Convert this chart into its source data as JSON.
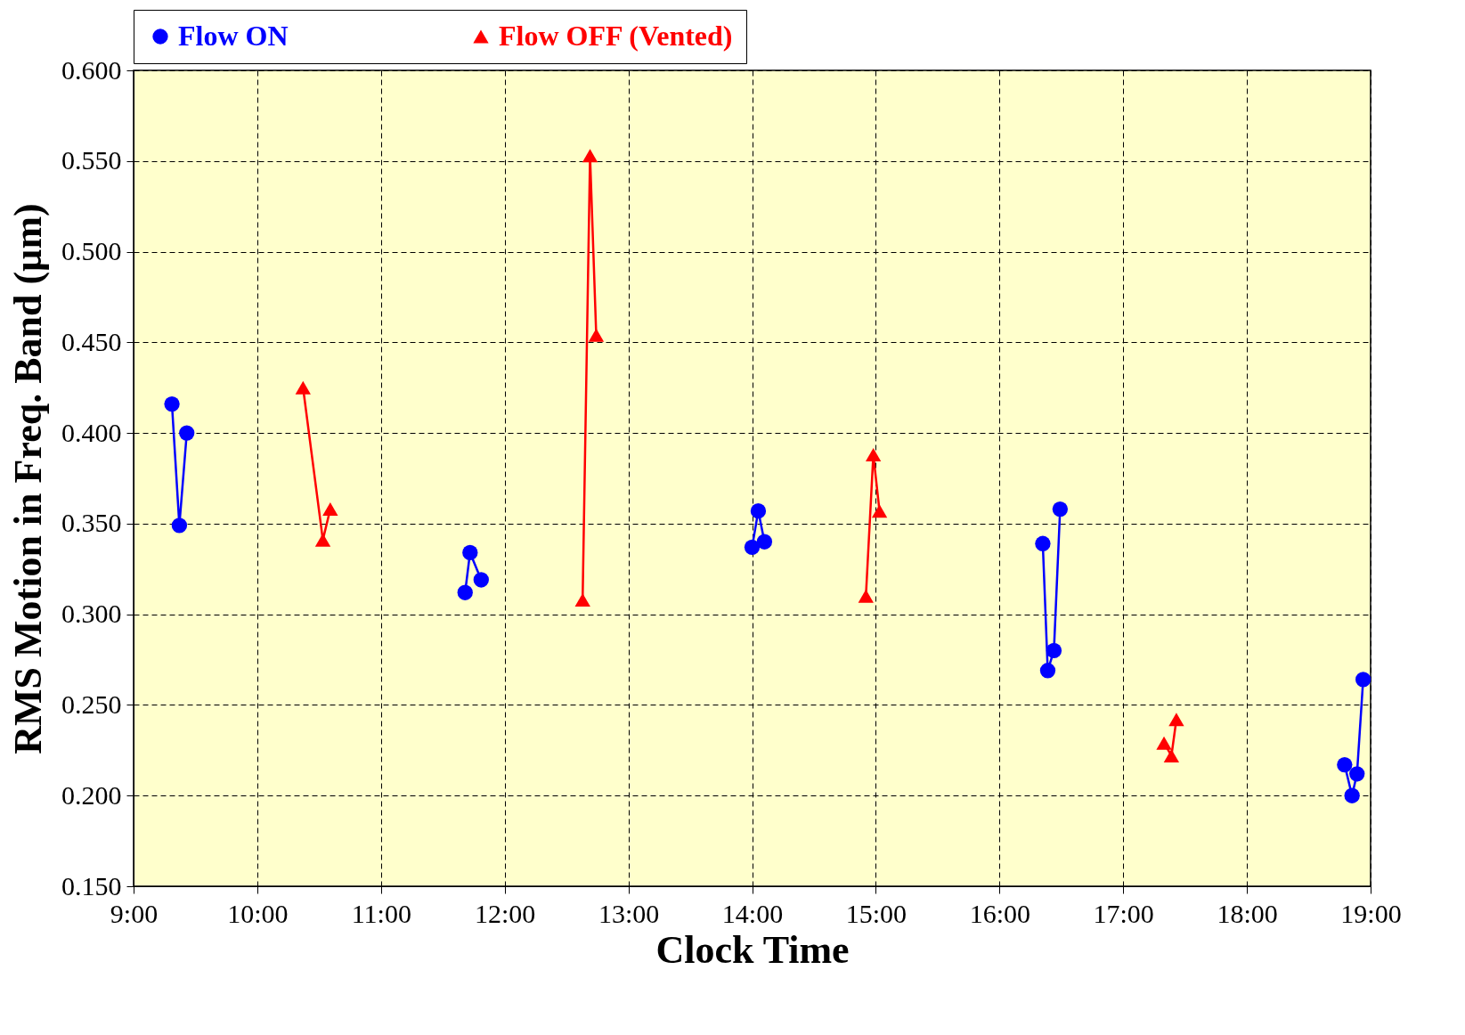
{
  "chart_data": {
    "type": "line",
    "xlabel": "Clock Time",
    "ylabel": "RMS Motion in Freq. Band (µm)",
    "xlim": [
      9,
      19
    ],
    "ylim": [
      0.15,
      0.6
    ],
    "xticks": [
      {
        "value": 9,
        "label": "9:00"
      },
      {
        "value": 10,
        "label": "10:00"
      },
      {
        "value": 11,
        "label": "11:00"
      },
      {
        "value": 12,
        "label": "12:00"
      },
      {
        "value": 13,
        "label": "13:00"
      },
      {
        "value": 14,
        "label": "14:00"
      },
      {
        "value": 15,
        "label": "15:00"
      },
      {
        "value": 16,
        "label": "16:00"
      },
      {
        "value": 17,
        "label": "17:00"
      },
      {
        "value": 18,
        "label": "18:00"
      },
      {
        "value": 19,
        "label": "19:00"
      }
    ],
    "yticks": [
      {
        "value": 0.15,
        "label": "0.150"
      },
      {
        "value": 0.2,
        "label": "0.200"
      },
      {
        "value": 0.25,
        "label": "0.250"
      },
      {
        "value": 0.3,
        "label": "0.300"
      },
      {
        "value": 0.35,
        "label": "0.350"
      },
      {
        "value": 0.4,
        "label": "0.400"
      },
      {
        "value": 0.45,
        "label": "0.450"
      },
      {
        "value": 0.5,
        "label": "0.500"
      },
      {
        "value": 0.55,
        "label": "0.550"
      },
      {
        "value": 0.6,
        "label": "0.600"
      }
    ],
    "grid": true,
    "legend": "top",
    "line_style": "solid",
    "series": [
      {
        "name": "Flow ON",
        "color": "#0000ff",
        "marker": "circle",
        "x": [
          9.31,
          9.37,
          9.43,
          null,
          11.68,
          11.72,
          11.81,
          null,
          14.0,
          14.05,
          14.1,
          null,
          16.35,
          16.39,
          16.44,
          16.49,
          null,
          18.79,
          18.85,
          18.89,
          18.94
        ],
        "values": [
          0.416,
          0.349,
          0.4,
          null,
          0.312,
          0.334,
          0.319,
          null,
          0.337,
          0.357,
          0.34,
          null,
          0.339,
          0.269,
          0.28,
          0.358,
          null,
          0.217,
          0.2,
          0.212,
          0.264
        ]
      },
      {
        "name": "Flow OFF (Vented)",
        "color": "#ff0000",
        "marker": "triangle",
        "x": [
          10.37,
          10.53,
          10.59,
          null,
          12.63,
          12.69,
          12.74,
          null,
          14.92,
          14.98,
          15.03,
          null,
          17.33,
          17.39,
          17.43
        ],
        "values": [
          0.425,
          0.341,
          0.358,
          null,
          0.308,
          0.553,
          0.454,
          null,
          0.31,
          0.388,
          0.357,
          null,
          0.229,
          0.222,
          0.242
        ]
      }
    ]
  }
}
